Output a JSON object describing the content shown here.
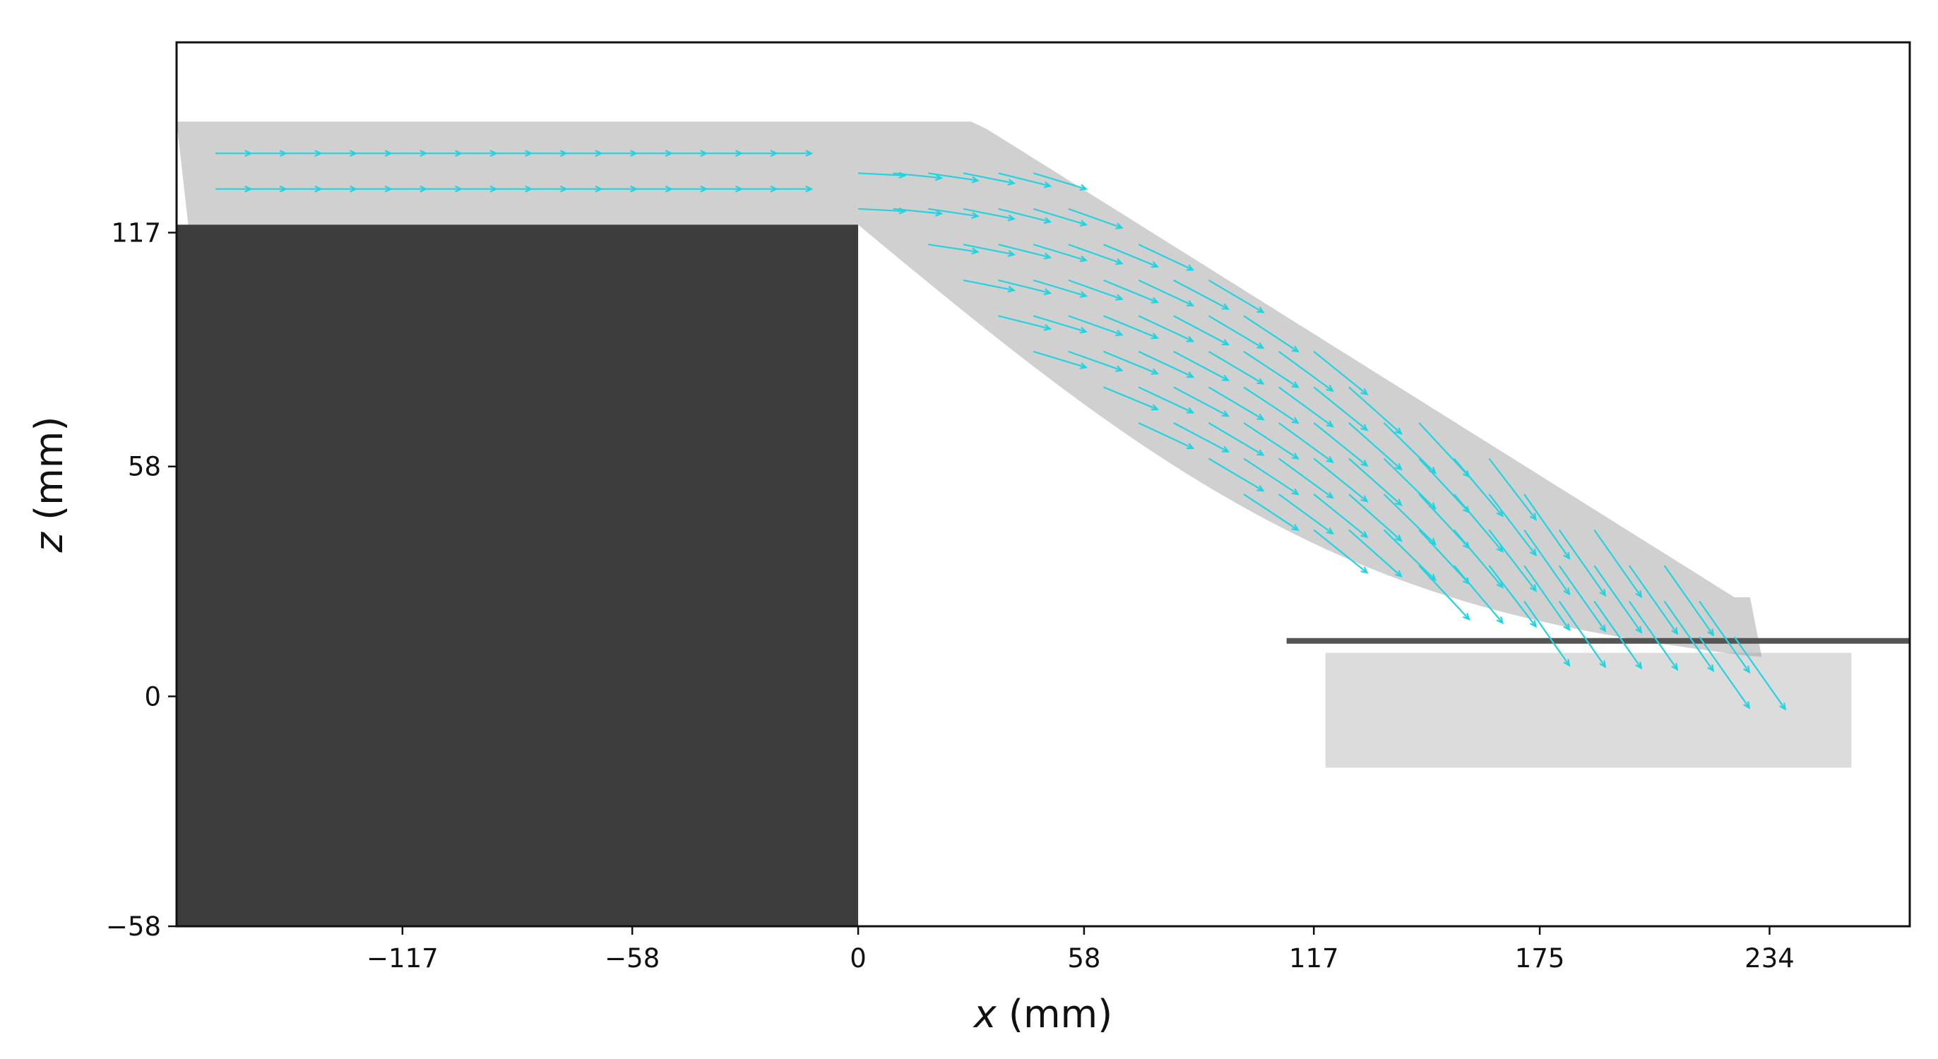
{
  "chart_data": {
    "type": "quiver",
    "xlabel_var": "x",
    "xlabel_unit": " (mm)",
    "ylabel_var": "z",
    "ylabel_unit": " (mm)",
    "xlim": [
      -175,
      270
    ],
    "ylim": [
      -58,
      165
    ],
    "xticks": [
      {
        "value": -117,
        "label": "−117"
      },
      {
        "value": -58,
        "label": "−58"
      },
      {
        "value": 0,
        "label": "0"
      },
      {
        "value": 58,
        "label": "58"
      },
      {
        "value": 117,
        "label": "117"
      },
      {
        "value": 175,
        "label": "175"
      },
      {
        "value": 234,
        "label": "234"
      }
    ],
    "yticks": [
      {
        "value": 117,
        "label": "117"
      },
      {
        "value": 58,
        "label": "58"
      },
      {
        "value": 0,
        "label": "0"
      },
      {
        "value": -58,
        "label": "−58"
      }
    ],
    "obstacle": {
      "x0": -175,
      "x1": 0,
      "z0": -58,
      "z1": 119,
      "color": "#3c3c3c"
    },
    "jet_region": {
      "x_start": -175,
      "z_top_start": 145,
      "z_bottom_start": 119,
      "z_top_end": 25,
      "z_bottom_end": 10
    },
    "water_surface_z": 12,
    "vector_color": "#21d4df",
    "vector_rows": [
      {
        "x_start": -165,
        "x_end": -15,
        "z": 137,
        "dx": 9,
        "dz": 0
      },
      {
        "x_start": -165,
        "x_end": -15,
        "z": 128,
        "dx": 9,
        "dz": 0
      }
    ],
    "vector_field_grid": {
      "x_start": 0,
      "x_end": 225,
      "x_step": 9,
      "z_min": 15,
      "z_max": 140,
      "z_step": 9,
      "scale": 12
    }
  }
}
